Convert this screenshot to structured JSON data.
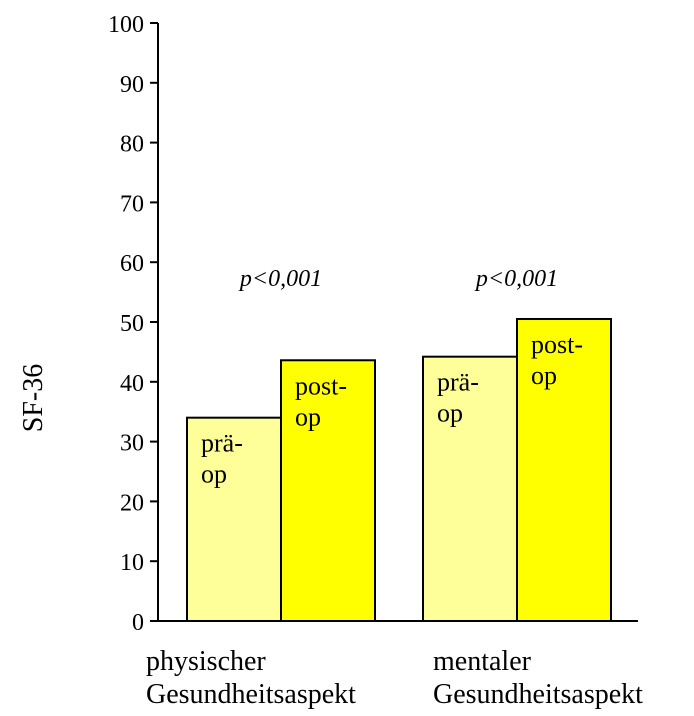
{
  "chart_data": {
    "type": "bar",
    "ylabel": "SF-36",
    "ylim": [
      0,
      100
    ],
    "yticks": [
      0,
      10,
      20,
      30,
      40,
      50,
      60,
      70,
      80,
      90,
      100
    ],
    "groups": [
      {
        "label_lines": [
          "physischer",
          "Gesundheitsaspekt"
        ],
        "annotation": "p<0,001",
        "bars": [
          {
            "label_lines": [
              "prä-",
              "op"
            ],
            "value": 34,
            "color": "#ffff99"
          },
          {
            "label_lines": [
              "post-",
              "op"
            ],
            "value": 43.6,
            "color": "#ffff00"
          }
        ]
      },
      {
        "label_lines": [
          "mentaler",
          "Gesundheitsaspekt"
        ],
        "annotation": "p<0,001",
        "bars": [
          {
            "label_lines": [
              "prä-",
              "op"
            ],
            "value": 44.2,
            "color": "#ffff99"
          },
          {
            "label_lines": [
              "post-",
              "op"
            ],
            "value": 50.5,
            "color": "#ffff00"
          }
        ]
      }
    ]
  }
}
